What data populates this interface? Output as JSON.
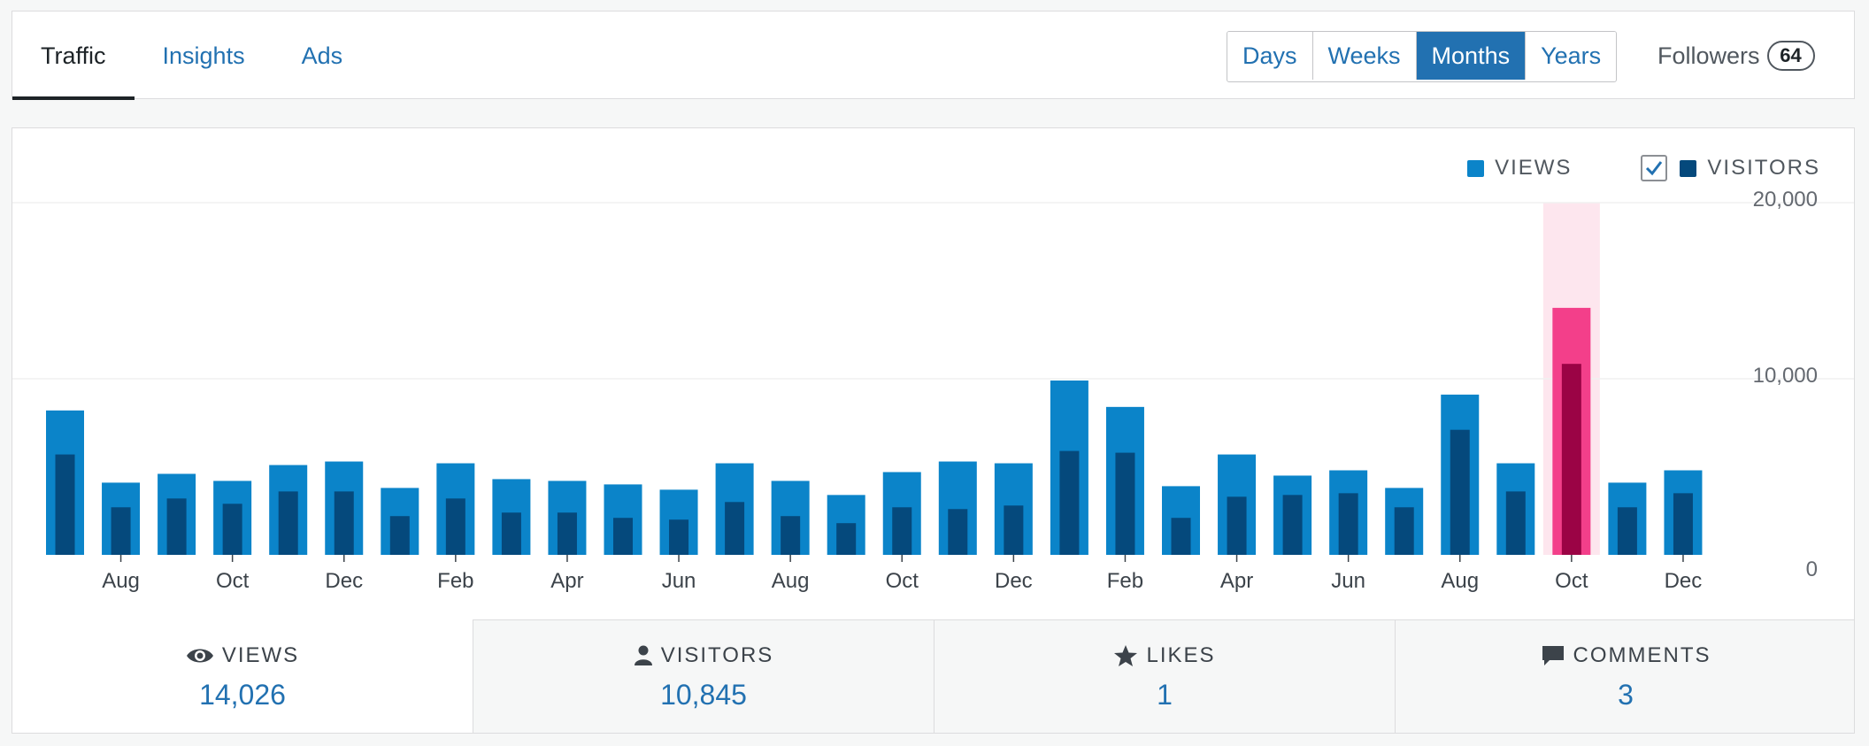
{
  "tabs": [
    {
      "label": "Traffic",
      "active": true
    },
    {
      "label": "Insights",
      "active": false
    },
    {
      "label": "Ads",
      "active": false
    }
  ],
  "periods": [
    {
      "label": "Days",
      "selected": false
    },
    {
      "label": "Weeks",
      "selected": false
    },
    {
      "label": "Months",
      "selected": true
    },
    {
      "label": "Years",
      "selected": false
    }
  ],
  "followers": {
    "label": "Followers",
    "count": "64"
  },
  "legend": {
    "views": "VIEWS",
    "visitors": "VISITORS",
    "visitors_checked": true
  },
  "colors": {
    "views": "#0b84c9",
    "visitors": "#05497c",
    "highlight_views": "#f33f8a",
    "highlight_visitors": "#9b0345",
    "highlight_bg": "#fde6ee",
    "accent": "#2271b1"
  },
  "chart_data": {
    "type": "bar",
    "categories": [
      "",
      "Aug",
      "",
      "Oct",
      "",
      "Dec",
      "",
      "Feb",
      "",
      "Apr",
      "",
      "Jun",
      "",
      "Aug",
      "",
      "Oct",
      "",
      "Dec",
      "",
      "Feb",
      "",
      "Apr",
      "",
      "Jun",
      "",
      "Aug",
      "",
      "Oct",
      "",
      "Dec"
    ],
    "series": [
      {
        "name": "VIEWS",
        "values": [
          8200,
          4100,
          4600,
          4200,
          5100,
          5300,
          3800,
          5200,
          4300,
          4200,
          4000,
          3700,
          5200,
          4200,
          3400,
          4700,
          5300,
          5200,
          9900,
          8400,
          3900,
          5700,
          4500,
          4800,
          3800,
          9100,
          5200,
          14026,
          4100,
          4800
        ]
      },
      {
        "name": "VISITORS",
        "values": [
          5700,
          2700,
          3200,
          2900,
          3600,
          3600,
          2200,
          3200,
          2400,
          2400,
          2100,
          2000,
          3000,
          2200,
          1800,
          2700,
          2600,
          2800,
          5900,
          5800,
          2100,
          3300,
          3400,
          3500,
          2700,
          7100,
          3600,
          10845,
          2700,
          3500
        ]
      }
    ],
    "highlight_index": 27,
    "ylim": [
      0,
      20000
    ],
    "yticks": [
      "0",
      "10,000",
      "20,000"
    ],
    "grid": true
  },
  "stats": [
    {
      "label": "VIEWS",
      "value": "14,026",
      "icon": "eye-icon",
      "active": true
    },
    {
      "label": "VISITORS",
      "value": "10,845",
      "icon": "person-icon",
      "active": false
    },
    {
      "label": "LIKES",
      "value": "1",
      "icon": "star-icon",
      "active": false
    },
    {
      "label": "COMMENTS",
      "value": "3",
      "icon": "comment-icon",
      "active": false
    }
  ]
}
